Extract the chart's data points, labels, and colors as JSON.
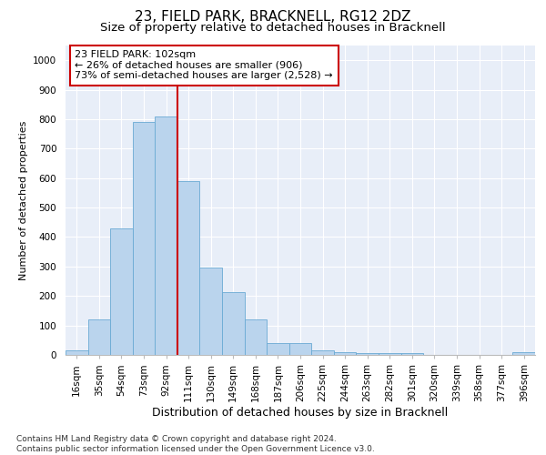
{
  "title": "23, FIELD PARK, BRACKNELL, RG12 2DZ",
  "subtitle": "Size of property relative to detached houses in Bracknell",
  "xlabel": "Distribution of detached houses by size in Bracknell",
  "ylabel": "Number of detached properties",
  "categories": [
    "16sqm",
    "35sqm",
    "54sqm",
    "73sqm",
    "92sqm",
    "111sqm",
    "130sqm",
    "149sqm",
    "168sqm",
    "187sqm",
    "206sqm",
    "225sqm",
    "244sqm",
    "263sqm",
    "282sqm",
    "301sqm",
    "320sqm",
    "339sqm",
    "358sqm",
    "377sqm",
    "396sqm"
  ],
  "values": [
    15,
    120,
    430,
    790,
    810,
    590,
    295,
    212,
    120,
    40,
    40,
    15,
    10,
    5,
    5,
    5,
    0,
    0,
    0,
    0,
    10
  ],
  "bar_color": "#bad4ed",
  "bar_edge_color": "#6aaad4",
  "vline_color": "#cc0000",
  "annotation_text": "23 FIELD PARK: 102sqm\n← 26% of detached houses are smaller (906)\n73% of semi-detached houses are larger (2,528) →",
  "annotation_box_color": "#ffffff",
  "annotation_box_edge": "#cc0000",
  "ylim": [
    0,
    1050
  ],
  "yticks": [
    0,
    100,
    200,
    300,
    400,
    500,
    600,
    700,
    800,
    900,
    1000
  ],
  "background_color": "#e8eef8",
  "grid_color": "#ffffff",
  "footer": "Contains HM Land Registry data © Crown copyright and database right 2024.\nContains public sector information licensed under the Open Government Licence v3.0.",
  "title_fontsize": 11,
  "subtitle_fontsize": 9.5,
  "xlabel_fontsize": 9,
  "ylabel_fontsize": 8,
  "tick_fontsize": 7.5,
  "annotation_fontsize": 8,
  "footer_fontsize": 6.5
}
